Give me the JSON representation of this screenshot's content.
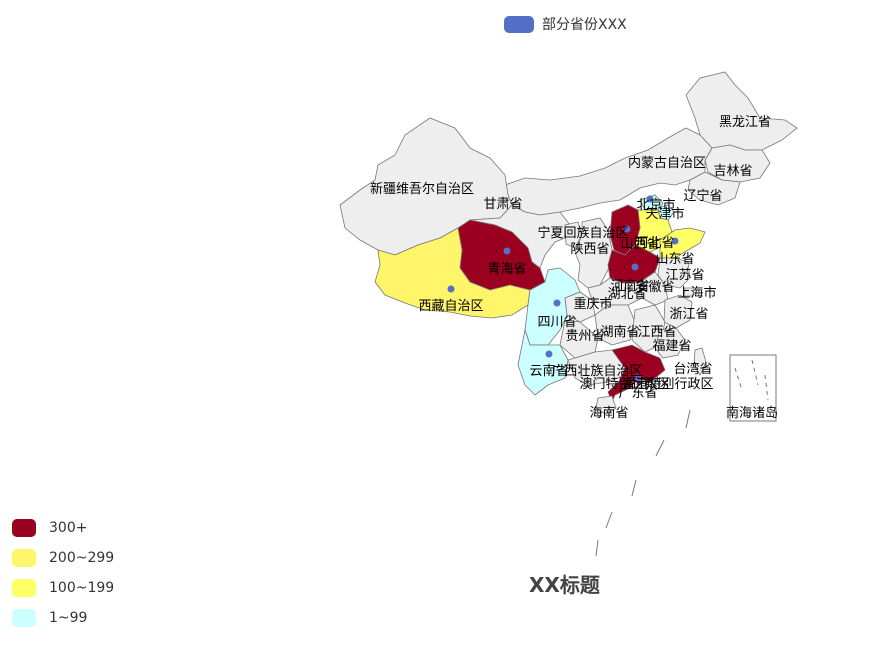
{
  "legend": {
    "series_name": "部分省份XXX",
    "color": "#5470c6"
  },
  "title": "XX标题",
  "visual_map": [
    {
      "label": "300+",
      "color": "#9b0020"
    },
    {
      "label": "200~299",
      "color": "#fef56a"
    },
    {
      "label": "100~199",
      "color": "#ffff66"
    },
    {
      "label": "1~99",
      "color": "#ccffff"
    }
  ],
  "map": {
    "default_fill": "#eeeeee",
    "border_color": "#777777",
    "provinces": [
      {
        "name": "黑龙江省",
        "category": "none"
      },
      {
        "name": "吉林省",
        "category": "none"
      },
      {
        "name": "辽宁省",
        "category": "none"
      },
      {
        "name": "内蒙古自治区",
        "category": "none"
      },
      {
        "name": "新疆维吾尔自治区",
        "category": "none"
      },
      {
        "name": "甘肃省",
        "category": "none"
      },
      {
        "name": "宁夏回族自治区",
        "category": "none"
      },
      {
        "name": "北京市",
        "category": "1~99",
        "marker": true
      },
      {
        "name": "天津市",
        "category": "1~99"
      },
      {
        "name": "河北省",
        "category": "100~199"
      },
      {
        "name": "山西省",
        "category": "300+",
        "marker": true
      },
      {
        "name": "陕西省",
        "category": "none"
      },
      {
        "name": "青海省",
        "category": "300+",
        "marker": true
      },
      {
        "name": "山东省",
        "category": "100~199",
        "marker": true
      },
      {
        "name": "河南省",
        "category": "300+",
        "marker": true
      },
      {
        "name": "江苏省",
        "category": "none"
      },
      {
        "name": "安徽省",
        "category": "none"
      },
      {
        "name": "上海市",
        "category": "none"
      },
      {
        "name": "湖北省",
        "category": "none"
      },
      {
        "name": "西藏自治区",
        "category": "200~299",
        "marker": true
      },
      {
        "name": "四川省",
        "category": "1~99"
      },
      {
        "name": "重庆市",
        "category": "none",
        "marker": true
      },
      {
        "name": "浙江省",
        "category": "none"
      },
      {
        "name": "湖南省",
        "category": "none"
      },
      {
        "name": "江西省",
        "category": "none"
      },
      {
        "name": "贵州省",
        "category": "none"
      },
      {
        "name": "福建省",
        "category": "none"
      },
      {
        "name": "云南省",
        "category": "1~99",
        "marker": true
      },
      {
        "name": "广西壮族自治区",
        "category": "none"
      },
      {
        "name": "广东省",
        "category": "300+",
        "marker": true
      },
      {
        "name": "台湾省",
        "category": "none"
      },
      {
        "name": "香港特别行政区",
        "category": "none"
      },
      {
        "name": "澳门特别行政区",
        "category": "none"
      },
      {
        "name": "海南省",
        "category": "none"
      },
      {
        "name": "南海诸岛",
        "category": "none"
      }
    ]
  }
}
